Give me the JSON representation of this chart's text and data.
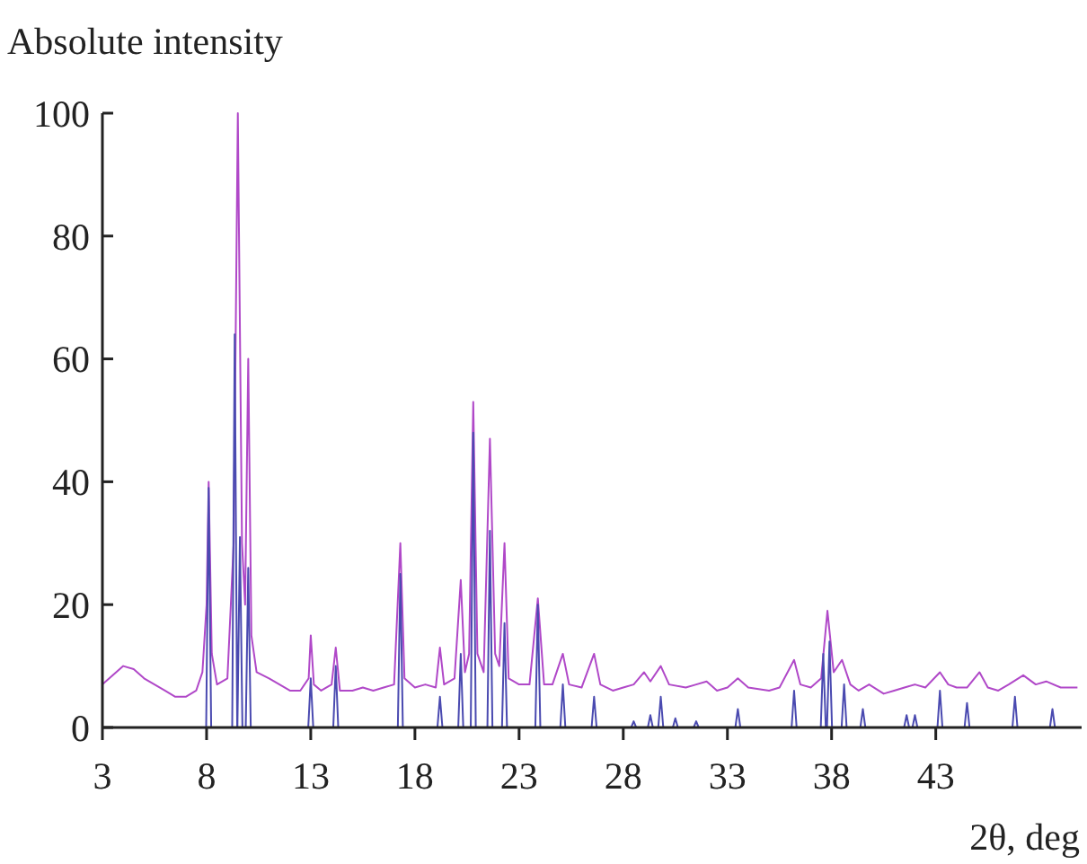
{
  "chart_data": {
    "type": "line",
    "xlabel": "2θ, deg",
    "ylabel": "Absolute intensity",
    "xlim": [
      3,
      50
    ],
    "xticks": [
      3,
      8,
      13,
      18,
      23,
      28,
      33,
      38,
      43
    ],
    "ylim": [
      0,
      100
    ],
    "yticks": [
      0,
      20,
      40,
      60,
      80,
      100
    ],
    "grid": false,
    "line_style": "solid",
    "series": [
      {
        "color": "#b048c8",
        "x": [
          3,
          3.5,
          4,
          4.5,
          5,
          5.5,
          6,
          6.5,
          7,
          7.5,
          7.8,
          8.0,
          8.1,
          8.25,
          8.5,
          9.0,
          9.3,
          9.5,
          9.7,
          9.85,
          10.0,
          10.15,
          10.4,
          11,
          11.5,
          12,
          12.5,
          12.9,
          13.0,
          13.15,
          13.5,
          14.0,
          14.2,
          14.4,
          15,
          15.5,
          16,
          16.5,
          17.0,
          17.3,
          17.5,
          18,
          18.5,
          19,
          19.2,
          19.4,
          19.9,
          20.2,
          20.4,
          20.6,
          20.8,
          21.0,
          21.3,
          21.6,
          21.85,
          22.05,
          22.3,
          22.5,
          23,
          23.5,
          23.9,
          24.2,
          24.6,
          25.1,
          25.4,
          26,
          26.6,
          26.9,
          27.5,
          28,
          28.5,
          29.0,
          29.3,
          29.8,
          30.2,
          31,
          31.5,
          32,
          32.5,
          33,
          33.5,
          34,
          35,
          35.5,
          36.2,
          36.5,
          37,
          37.5,
          37.8,
          38.1,
          38.5,
          38.9,
          39.3,
          39.8,
          40.5,
          41,
          41.5,
          42,
          42.5,
          43.2,
          43.6,
          44,
          44.5,
          45.1,
          45.5,
          46,
          46.5,
          47.2,
          47.8,
          48.3,
          49,
          49.8
        ],
        "values": [
          7,
          8.5,
          10,
          9.5,
          8,
          7,
          6,
          5,
          5,
          6,
          9,
          20,
          40,
          12,
          7,
          8,
          30,
          100,
          30,
          20,
          60,
          15,
          9,
          8,
          7,
          6,
          6,
          8,
          15,
          7,
          6,
          7,
          13,
          6,
          6,
          6.5,
          6,
          6.5,
          7,
          30,
          8,
          6.5,
          7,
          6.5,
          13,
          7,
          8,
          24,
          9,
          12,
          53,
          12,
          9,
          47,
          12,
          10,
          30,
          8,
          7,
          7,
          21,
          7,
          7,
          12,
          7,
          6.5,
          12,
          7,
          6,
          6.5,
          7,
          9,
          7.5,
          10,
          7,
          6.5,
          7,
          7.5,
          6,
          6.5,
          8,
          6.5,
          6,
          6.5,
          11,
          7,
          6.5,
          8,
          19,
          9,
          11,
          7,
          6,
          7,
          5.5,
          6,
          6.5,
          7,
          6.5,
          9,
          7,
          6.5,
          6.5,
          9,
          6.5,
          6,
          7,
          8.5,
          7,
          7.5,
          6.5,
          6.5
        ]
      },
      {
        "color": "#4a4ab0",
        "x": [
          3,
          7.98,
          8.1,
          8.22,
          9.23,
          9.35,
          9.47,
          9.48,
          9.6,
          9.72,
          9.88,
          10.0,
          10.12,
          12.88,
          13.0,
          13.12,
          14.08,
          14.2,
          14.32,
          17.18,
          17.3,
          17.42,
          19.08,
          19.2,
          19.32,
          20.08,
          20.2,
          20.32,
          20.68,
          20.8,
          20.92,
          21.48,
          21.6,
          21.72,
          22.18,
          22.3,
          22.42,
          23.78,
          23.9,
          24.02,
          24.98,
          25.1,
          25.22,
          26.48,
          26.6,
          26.72,
          28.38,
          28.5,
          28.62,
          29.18,
          29.3,
          29.42,
          29.68,
          29.8,
          29.92,
          30.38,
          30.5,
          30.62,
          31.38,
          31.5,
          31.62,
          33.38,
          33.5,
          33.62,
          36.08,
          36.2,
          36.32,
          37.48,
          37.6,
          37.72,
          37.78,
          37.9,
          38.02,
          38.48,
          38.6,
          38.72,
          39.38,
          39.5,
          39.62,
          41.48,
          41.6,
          41.72,
          41.88,
          42.0,
          42.12,
          43.08,
          43.2,
          43.32,
          44.38,
          44.5,
          44.62,
          46.68,
          46.8,
          46.92,
          48.48,
          48.6,
          48.72,
          49.8
        ],
        "values": [
          0,
          0,
          39,
          0,
          0,
          64,
          0,
          0,
          31,
          0,
          0,
          26,
          0,
          0,
          8,
          0,
          0,
          10,
          0,
          0,
          25,
          0,
          0,
          5,
          0,
          0,
          12,
          0,
          0,
          48,
          0,
          0,
          32,
          0,
          0,
          17,
          0,
          0,
          20,
          0,
          0,
          7,
          0,
          0,
          5,
          0,
          0,
          1,
          0,
          0,
          2,
          0,
          0,
          5,
          0,
          0,
          1.5,
          0,
          0,
          1,
          0,
          0,
          3,
          0,
          0,
          6,
          0,
          0,
          12,
          0,
          0,
          14,
          0,
          0,
          7,
          0,
          0,
          3,
          0,
          0,
          2,
          0,
          0,
          2,
          0,
          0,
          6,
          0,
          0,
          4,
          0,
          0,
          5,
          0,
          0,
          3,
          0,
          0
        ]
      }
    ]
  }
}
